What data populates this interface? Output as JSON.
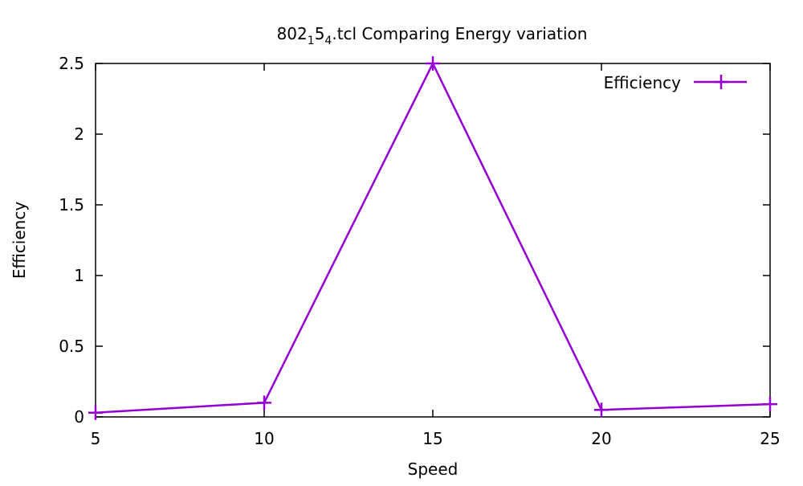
{
  "chart_data": {
    "type": "line",
    "title": {
      "base": "802",
      "sub1": "1",
      "mid": "5",
      "sub2": "4",
      "rest": ".tcl Comparing Energy variation"
    },
    "xlabel": "Speed",
    "ylabel": "Efficiency",
    "xlim": [
      5,
      25
    ],
    "ylim": [
      0,
      2.5
    ],
    "xticks": [
      5,
      10,
      15,
      20,
      25
    ],
    "xtick_labels": [
      "5",
      "10",
      "15",
      "20",
      "25"
    ],
    "yticks": [
      0,
      0.5,
      1,
      1.5,
      2,
      2.5
    ],
    "ytick_labels": [
      "0",
      "0.5",
      "1",
      "1.5",
      "2",
      "2.5"
    ],
    "grid": false,
    "legend_position": "top-right",
    "series": [
      {
        "name": "Efficiency",
        "color": "#9400d3",
        "marker": "plus",
        "x": [
          5,
          10,
          15,
          20,
          25
        ],
        "y": [
          0.03,
          0.1,
          2.5,
          0.05,
          0.09
        ]
      }
    ]
  }
}
